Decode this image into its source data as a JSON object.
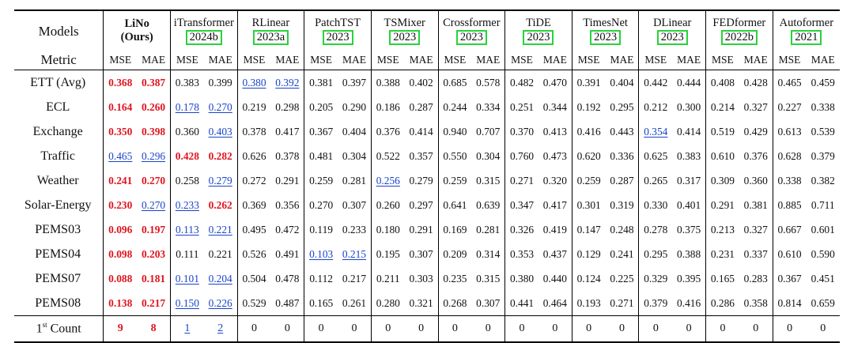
{
  "header": {
    "models_label": "Models",
    "metric_label": "Metric",
    "models": [
      {
        "name": "LiNo",
        "sub": "(Ours)",
        "boxed": false
      },
      {
        "name": "iTransformer",
        "sub": "2024b",
        "boxed": true
      },
      {
        "name": "RLinear",
        "sub": "2023a",
        "boxed": true
      },
      {
        "name": "PatchTST",
        "sub": "2023",
        "boxed": true
      },
      {
        "name": "TSMixer",
        "sub": "2023",
        "boxed": true
      },
      {
        "name": "Crossformer",
        "sub": "2023",
        "boxed": true
      },
      {
        "name": "TiDE",
        "sub": "2023",
        "boxed": true
      },
      {
        "name": "TimesNet",
        "sub": "2023",
        "boxed": true
      },
      {
        "name": "DLinear",
        "sub": "2023",
        "boxed": true
      },
      {
        "name": "FEDformer",
        "sub": "2022b",
        "boxed": true
      },
      {
        "name": "Autoformer",
        "sub": "2021",
        "boxed": true
      }
    ],
    "mse": "MSE",
    "mae": "MAE"
  },
  "rows": [
    {
      "dataset": "ETT (Avg)",
      "values": [
        "0.368",
        "0.387",
        "0.383",
        "0.399",
        "0.380",
        "0.392",
        "0.381",
        "0.397",
        "0.388",
        "0.402",
        "0.685",
        "0.578",
        "0.482",
        "0.470",
        "0.391",
        "0.404",
        "0.442",
        "0.444",
        "0.408",
        "0.428",
        "0.465",
        "0.459"
      ],
      "best": [
        0,
        1
      ],
      "second": [
        4,
        5
      ]
    },
    {
      "dataset": "ECL",
      "values": [
        "0.164",
        "0.260",
        "0.178",
        "0.270",
        "0.219",
        "0.298",
        "0.205",
        "0.290",
        "0.186",
        "0.287",
        "0.244",
        "0.334",
        "0.251",
        "0.344",
        "0.192",
        "0.295",
        "0.212",
        "0.300",
        "0.214",
        "0.327",
        "0.227",
        "0.338"
      ],
      "best": [
        0,
        1
      ],
      "second": [
        2,
        3
      ]
    },
    {
      "dataset": "Exchange",
      "values": [
        "0.350",
        "0.398",
        "0.360",
        "0.403",
        "0.378",
        "0.417",
        "0.367",
        "0.404",
        "0.376",
        "0.414",
        "0.940",
        "0.707",
        "0.370",
        "0.413",
        "0.416",
        "0.443",
        "0.354",
        "0.414",
        "0.519",
        "0.429",
        "0.613",
        "0.539"
      ],
      "best": [
        0,
        1
      ],
      "second": [
        3,
        16
      ]
    },
    {
      "dataset": "Traffic",
      "values": [
        "0.465",
        "0.296",
        "0.428",
        "0.282",
        "0.626",
        "0.378",
        "0.481",
        "0.304",
        "0.522",
        "0.357",
        "0.550",
        "0.304",
        "0.760",
        "0.473",
        "0.620",
        "0.336",
        "0.625",
        "0.383",
        "0.610",
        "0.376",
        "0.628",
        "0.379"
      ],
      "best": [
        2,
        3
      ],
      "second": [
        0,
        1
      ]
    },
    {
      "dataset": "Weather",
      "values": [
        "0.241",
        "0.270",
        "0.258",
        "0.279",
        "0.272",
        "0.291",
        "0.259",
        "0.281",
        "0.256",
        "0.279",
        "0.259",
        "0.315",
        "0.271",
        "0.320",
        "0.259",
        "0.287",
        "0.265",
        "0.317",
        "0.309",
        "0.360",
        "0.338",
        "0.382"
      ],
      "best": [
        0,
        1
      ],
      "second": [
        3,
        8
      ]
    },
    {
      "dataset": "Solar-Energy",
      "values": [
        "0.230",
        "0.270",
        "0.233",
        "0.262",
        "0.369",
        "0.356",
        "0.270",
        "0.307",
        "0.260",
        "0.297",
        "0.641",
        "0.639",
        "0.347",
        "0.417",
        "0.301",
        "0.319",
        "0.330",
        "0.401",
        "0.291",
        "0.381",
        "0.885",
        "0.711"
      ],
      "best": [
        0,
        3
      ],
      "second": [
        1,
        2
      ]
    },
    {
      "dataset": "PEMS03",
      "values": [
        "0.096",
        "0.197",
        "0.113",
        "0.221",
        "0.495",
        "0.472",
        "0.119",
        "0.233",
        "0.180",
        "0.291",
        "0.169",
        "0.281",
        "0.326",
        "0.419",
        "0.147",
        "0.248",
        "0.278",
        "0.375",
        "0.213",
        "0.327",
        "0.667",
        "0.601"
      ],
      "best": [
        0,
        1
      ],
      "second": [
        2,
        3
      ]
    },
    {
      "dataset": "PEMS04",
      "values": [
        "0.098",
        "0.203",
        "0.111",
        "0.221",
        "0.526",
        "0.491",
        "0.103",
        "0.215",
        "0.195",
        "0.307",
        "0.209",
        "0.314",
        "0.353",
        "0.437",
        "0.129",
        "0.241",
        "0.295",
        "0.388",
        "0.231",
        "0.337",
        "0.610",
        "0.590"
      ],
      "best": [
        0,
        1
      ],
      "second": [
        6,
        7
      ]
    },
    {
      "dataset": "PEMS07",
      "values": [
        "0.088",
        "0.181",
        "0.101",
        "0.204",
        "0.504",
        "0.478",
        "0.112",
        "0.217",
        "0.211",
        "0.303",
        "0.235",
        "0.315",
        "0.380",
        "0.440",
        "0.124",
        "0.225",
        "0.329",
        "0.395",
        "0.165",
        "0.283",
        "0.367",
        "0.451"
      ],
      "best": [
        0,
        1
      ],
      "second": [
        2,
        3
      ]
    },
    {
      "dataset": "PEMS08",
      "values": [
        "0.138",
        "0.217",
        "0.150",
        "0.226",
        "0.529",
        "0.487",
        "0.165",
        "0.261",
        "0.280",
        "0.321",
        "0.268",
        "0.307",
        "0.441",
        "0.464",
        "0.193",
        "0.271",
        "0.379",
        "0.416",
        "0.286",
        "0.358",
        "0.814",
        "0.659"
      ],
      "best": [
        0,
        1
      ],
      "second": [
        2,
        3
      ]
    }
  ],
  "count_row": {
    "label_main": "1",
    "label_sup": "st",
    "label_rest": " Count",
    "values": [
      "9",
      "8",
      "1",
      "2",
      "0",
      "0",
      "0",
      "0",
      "0",
      "0",
      "0",
      "0",
      "0",
      "0",
      "0",
      "0",
      "0",
      "0",
      "0",
      "0",
      "0",
      "0"
    ],
    "best": [
      0,
      1
    ],
    "second": [
      2,
      3
    ]
  },
  "colors": {
    "best": "#e0141e",
    "second": "#1a44c8",
    "year_box": "#27d33b"
  }
}
